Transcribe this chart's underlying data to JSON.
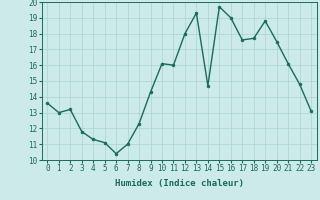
{
  "x": [
    0,
    1,
    2,
    3,
    4,
    5,
    6,
    7,
    8,
    9,
    10,
    11,
    12,
    13,
    14,
    15,
    16,
    17,
    18,
    19,
    20,
    21,
    22,
    23
  ],
  "y": [
    13.6,
    13.0,
    13.2,
    11.8,
    11.3,
    11.1,
    10.4,
    11.0,
    12.3,
    14.3,
    16.1,
    16.0,
    18.0,
    19.3,
    14.7,
    19.7,
    19.0,
    17.6,
    17.7,
    18.8,
    17.5,
    16.1,
    14.8,
    13.1
  ],
  "line_color": "#1a6b5a",
  "marker": "o",
  "marker_size": 2.0,
  "line_width": 1.0,
  "xlabel": "Humidex (Indice chaleur)",
  "xlim": [
    -0.5,
    23.5
  ],
  "ylim": [
    10,
    20
  ],
  "yticks": [
    10,
    11,
    12,
    13,
    14,
    15,
    16,
    17,
    18,
    19,
    20
  ],
  "xticks": [
    0,
    1,
    2,
    3,
    4,
    5,
    6,
    7,
    8,
    9,
    10,
    11,
    12,
    13,
    14,
    15,
    16,
    17,
    18,
    19,
    20,
    21,
    22,
    23
  ],
  "bg_color": "#cceae7",
  "grid_color": "#aad4d0",
  "tick_fontsize": 5.5,
  "xlabel_fontsize": 6.5
}
